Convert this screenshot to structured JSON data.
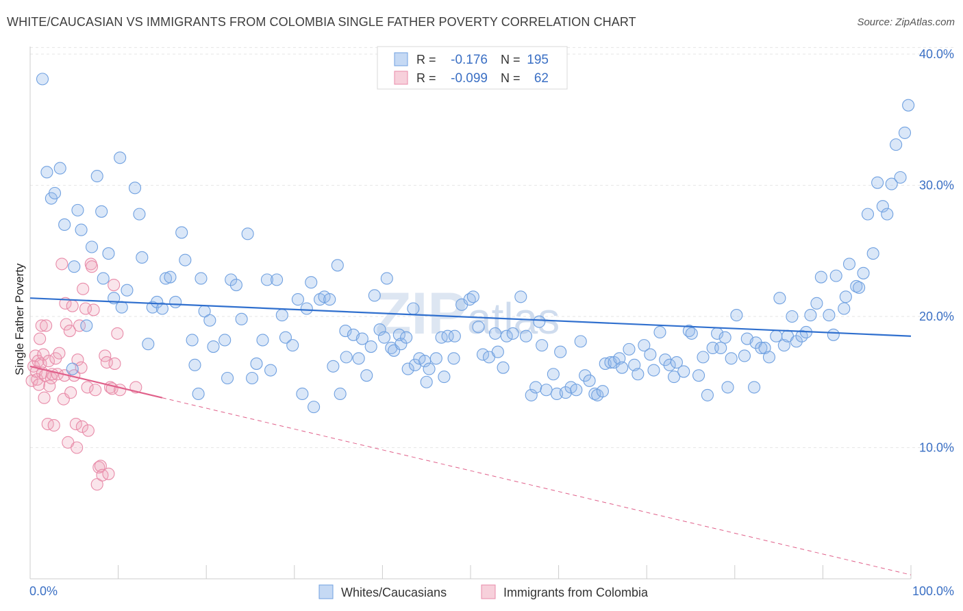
{
  "title": "WHITE/CAUCASIAN VS IMMIGRANTS FROM COLOMBIA SINGLE FATHER POVERTY CORRELATION CHART",
  "source": "Source: ZipAtlas.com",
  "watermark": {
    "zip": "ZIP",
    "atlas": "atlas"
  },
  "colors": {
    "blue": "#6fa0e0",
    "blue_fill": "rgba(150,185,235,0.35)",
    "blue_line": "#2f6fce",
    "pink": "#e88aa8",
    "pink_fill": "rgba(240,170,190,0.30)",
    "pink_line": "#e0608a",
    "tick_text": "#3a6fc4",
    "grid": "#e6e6e6"
  },
  "legend": {
    "rows": [
      {
        "r_label": "R =",
        "r_value": "-0.176",
        "n_label": "N =",
        "n_value": "195"
      },
      {
        "r_label": "R =",
        "r_value": "-0.099",
        "n_label": "N =",
        "n_value": "62"
      }
    ]
  },
  "bottom_legend": [
    "Whites/Caucasians",
    "Immigrants from Colombia"
  ],
  "chart_data": {
    "type": "scatter",
    "title": "WHITE/CAUCASIAN VS IMMIGRANTS FROM COLOMBIA SINGLE FATHER POVERTY CORRELATION CHART",
    "xlabel": "",
    "ylabel": "Single Father Poverty",
    "xlim": [
      0,
      100
    ],
    "ylim": [
      0,
      41.5
    ],
    "x_ticks": [
      "0.0%",
      "100.0%"
    ],
    "y_ticks": [
      {
        "value": 10,
        "label": "10.0%"
      },
      {
        "value": 20,
        "label": "20.0%"
      },
      {
        "value": 30,
        "label": "30.0%"
      },
      {
        "value": 40,
        "label": "40.0%"
      }
    ],
    "grid": true,
    "legend_position": "top-center",
    "series": [
      {
        "name": "Whites/Caucasians",
        "r": -0.176,
        "n": 195,
        "trend": {
          "x": [
            0,
            100
          ],
          "y": [
            21.4,
            18.5
          ]
        },
        "points": [
          [
            1.4,
            38.1
          ],
          [
            1.9,
            31.0
          ],
          [
            2.4,
            29.0
          ],
          [
            2.8,
            29.4
          ],
          [
            3.4,
            31.3
          ],
          [
            3.9,
            27.0
          ],
          [
            4.8,
            16.0
          ],
          [
            5.0,
            23.8
          ],
          [
            5.4,
            28.1
          ],
          [
            5.8,
            26.6
          ],
          [
            6.4,
            19.3
          ],
          [
            7.0,
            25.3
          ],
          [
            7.6,
            30.7
          ],
          [
            8.1,
            28.0
          ],
          [
            8.3,
            22.9
          ],
          [
            8.9,
            24.8
          ],
          [
            9.5,
            21.4
          ],
          [
            10.2,
            32.1
          ],
          [
            10.4,
            20.7
          ],
          [
            11.0,
            22.0
          ],
          [
            11.9,
            29.8
          ],
          [
            12.4,
            27.8
          ],
          [
            12.7,
            24.5
          ],
          [
            13.4,
            17.9
          ],
          [
            13.9,
            20.7
          ],
          [
            14.4,
            21.1
          ],
          [
            15.0,
            20.6
          ],
          [
            15.4,
            22.9
          ],
          [
            15.9,
            23.0
          ],
          [
            16.5,
            21.1
          ],
          [
            17.2,
            26.4
          ],
          [
            17.6,
            24.3
          ],
          [
            18.4,
            18.2
          ],
          [
            18.7,
            16.3
          ],
          [
            19.1,
            14.1
          ],
          [
            19.4,
            22.9
          ],
          [
            19.8,
            20.4
          ],
          [
            20.4,
            19.7
          ],
          [
            20.8,
            17.7
          ],
          [
            22.1,
            18.2
          ],
          [
            22.4,
            15.3
          ],
          [
            22.8,
            22.8
          ],
          [
            23.4,
            22.4
          ],
          [
            24.0,
            19.8
          ],
          [
            24.7,
            26.3
          ],
          [
            25.2,
            15.3
          ],
          [
            25.7,
            16.4
          ],
          [
            26.4,
            18.2
          ],
          [
            26.9,
            22.8
          ],
          [
            27.3,
            15.9
          ],
          [
            28.0,
            22.8
          ],
          [
            28.6,
            20.1
          ],
          [
            29.0,
            18.4
          ],
          [
            29.8,
            17.8
          ],
          [
            30.4,
            21.3
          ],
          [
            30.9,
            14.1
          ],
          [
            31.4,
            20.6
          ],
          [
            31.9,
            22.6
          ],
          [
            32.2,
            13.1
          ],
          [
            32.9,
            21.3
          ],
          [
            33.4,
            21.5
          ],
          [
            34.0,
            21.3
          ],
          [
            34.4,
            16.2
          ],
          [
            34.9,
            23.9
          ],
          [
            35.2,
            14.1
          ],
          [
            35.8,
            18.9
          ],
          [
            35.9,
            16.9
          ],
          [
            36.7,
            18.6
          ],
          [
            37.3,
            16.8
          ],
          [
            37.7,
            18.3
          ],
          [
            38.2,
            15.5
          ],
          [
            38.7,
            17.7
          ],
          [
            39.1,
            21.6
          ],
          [
            39.7,
            19.0
          ],
          [
            40.2,
            18.4
          ],
          [
            40.5,
            22.9
          ],
          [
            41.0,
            17.6
          ],
          [
            41.3,
            17.4
          ],
          [
            41.9,
            18.6
          ],
          [
            42.1,
            17.9
          ],
          [
            42.7,
            18.4
          ],
          [
            42.9,
            16.0
          ],
          [
            43.5,
            20.6
          ],
          [
            43.7,
            16.3
          ],
          [
            44.2,
            16.8
          ],
          [
            44.8,
            16.6
          ],
          [
            45.0,
            15.0
          ],
          [
            45.3,
            16.0
          ],
          [
            46.1,
            16.8
          ],
          [
            46.7,
            18.4
          ],
          [
            47.0,
            15.4
          ],
          [
            47.4,
            18.5
          ],
          [
            48.1,
            16.8
          ],
          [
            48.2,
            18.5
          ],
          [
            49.0,
            20.9
          ],
          [
            49.9,
            21.3
          ],
          [
            50.3,
            21.5
          ],
          [
            50.9,
            19.2
          ],
          [
            51.4,
            17.1
          ],
          [
            52.1,
            16.9
          ],
          [
            52.8,
            18.7
          ],
          [
            53.1,
            17.3
          ],
          [
            53.7,
            16.1
          ],
          [
            54.1,
            18.5
          ],
          [
            54.8,
            18.7
          ],
          [
            55.7,
            21.5
          ],
          [
            56.3,
            18.5
          ],
          [
            56.9,
            14.0
          ],
          [
            57.4,
            14.6
          ],
          [
            57.8,
            19.6
          ],
          [
            58.1,
            17.8
          ],
          [
            58.6,
            14.4
          ],
          [
            59.4,
            15.6
          ],
          [
            59.8,
            14.1
          ],
          [
            60.2,
            17.3
          ],
          [
            60.8,
            14.2
          ],
          [
            61.4,
            14.6
          ],
          [
            62.0,
            14.4
          ],
          [
            62.5,
            18.1
          ],
          [
            63.0,
            15.5
          ],
          [
            63.5,
            15.1
          ],
          [
            64.1,
            14.1
          ],
          [
            64.4,
            14.0
          ],
          [
            65.0,
            14.3
          ],
          [
            65.3,
            16.4
          ],
          [
            65.9,
            16.5
          ],
          [
            66.3,
            16.5
          ],
          [
            66.9,
            16.8
          ],
          [
            67.2,
            16.1
          ],
          [
            68.0,
            17.5
          ],
          [
            68.6,
            16.3
          ],
          [
            69.0,
            15.6
          ],
          [
            69.7,
            17.8
          ],
          [
            70.4,
            17.1
          ],
          [
            70.8,
            15.9
          ],
          [
            71.5,
            18.8
          ],
          [
            72.1,
            16.7
          ],
          [
            72.6,
            16.3
          ],
          [
            73.1,
            15.4
          ],
          [
            73.4,
            16.5
          ],
          [
            74.2,
            15.8
          ],
          [
            74.8,
            18.9
          ],
          [
            75.1,
            18.7
          ],
          [
            75.9,
            15.5
          ],
          [
            76.4,
            16.9
          ],
          [
            76.9,
            14.0
          ],
          [
            77.5,
            17.6
          ],
          [
            78.0,
            18.7
          ],
          [
            78.4,
            17.6
          ],
          [
            78.9,
            18.4
          ],
          [
            79.2,
            14.6
          ],
          [
            79.6,
            16.8
          ],
          [
            80.2,
            20.1
          ],
          [
            81.1,
            17.0
          ],
          [
            81.4,
            18.3
          ],
          [
            82.2,
            14.6
          ],
          [
            82.4,
            18.0
          ],
          [
            83.0,
            17.6
          ],
          [
            83.4,
            17.6
          ],
          [
            83.9,
            16.9
          ],
          [
            84.7,
            18.5
          ],
          [
            85.1,
            21.4
          ],
          [
            85.6,
            17.8
          ],
          [
            86.0,
            18.5
          ],
          [
            86.5,
            20.0
          ],
          [
            87.0,
            18.1
          ],
          [
            87.6,
            18.5
          ],
          [
            88.1,
            18.8
          ],
          [
            88.6,
            20.1
          ],
          [
            89.3,
            21.0
          ],
          [
            89.8,
            23.0
          ],
          [
            90.7,
            20.1
          ],
          [
            91.2,
            18.6
          ],
          [
            91.5,
            23.1
          ],
          [
            92.4,
            20.6
          ],
          [
            92.6,
            21.5
          ],
          [
            93.0,
            24.0
          ],
          [
            93.8,
            22.3
          ],
          [
            94.1,
            22.2
          ],
          [
            94.6,
            23.3
          ],
          [
            95.1,
            27.8
          ],
          [
            95.7,
            24.8
          ],
          [
            96.2,
            30.2
          ],
          [
            96.8,
            28.4
          ],
          [
            97.3,
            27.8
          ],
          [
            97.8,
            30.1
          ],
          [
            98.3,
            33.1
          ],
          [
            98.8,
            30.6
          ],
          [
            99.3,
            34.0
          ],
          [
            99.7,
            36.1
          ]
        ]
      },
      {
        "name": "Immigrants from Colombia",
        "r": -0.099,
        "n": 62,
        "trend": {
          "x": [
            0,
            15
          ],
          "y": [
            16.2,
            13.8
          ]
        },
        "trend_extension": {
          "x": [
            15,
            100
          ],
          "y": [
            13.8,
            0.3
          ]
        },
        "points": [
          [
            0.2,
            15.1
          ],
          [
            0.4,
            16.2
          ],
          [
            0.6,
            17.0
          ],
          [
            0.7,
            15.8
          ],
          [
            0.8,
            15.2
          ],
          [
            0.9,
            16.6
          ],
          [
            1.0,
            14.8
          ],
          [
            1.1,
            18.3
          ],
          [
            1.2,
            16.4
          ],
          [
            1.3,
            19.3
          ],
          [
            1.4,
            15.7
          ],
          [
            1.5,
            17.1
          ],
          [
            1.6,
            13.8
          ],
          [
            1.7,
            15.5
          ],
          [
            1.8,
            19.3
          ],
          [
            2.0,
            11.8
          ],
          [
            2.1,
            16.6
          ],
          [
            2.2,
            14.7
          ],
          [
            2.4,
            15.3
          ],
          [
            2.5,
            15.6
          ],
          [
            2.7,
            11.7
          ],
          [
            2.9,
            16.8
          ],
          [
            3.1,
            15.6
          ],
          [
            3.3,
            17.2
          ],
          [
            3.6,
            24.0
          ],
          [
            3.8,
            13.7
          ],
          [
            3.9,
            15.5
          ],
          [
            4.0,
            21.0
          ],
          [
            4.1,
            19.4
          ],
          [
            4.3,
            10.4
          ],
          [
            4.5,
            18.9
          ],
          [
            4.6,
            14.2
          ],
          [
            4.8,
            20.8
          ],
          [
            5.0,
            15.5
          ],
          [
            5.2,
            11.8
          ],
          [
            5.3,
            10.0
          ],
          [
            5.4,
            16.7
          ],
          [
            5.6,
            19.3
          ],
          [
            5.8,
            16.1
          ],
          [
            5.9,
            11.6
          ],
          [
            6.0,
            22.1
          ],
          [
            6.3,
            20.6
          ],
          [
            6.5,
            14.6
          ],
          [
            6.6,
            11.3
          ],
          [
            6.9,
            24.0
          ],
          [
            7.0,
            23.8
          ],
          [
            7.2,
            20.5
          ],
          [
            7.4,
            14.4
          ],
          [
            7.6,
            7.2
          ],
          [
            7.8,
            8.5
          ],
          [
            8.0,
            8.6
          ],
          [
            8.2,
            7.9
          ],
          [
            8.5,
            17.0
          ],
          [
            8.7,
            16.5
          ],
          [
            8.9,
            8.0
          ],
          [
            9.1,
            14.6
          ],
          [
            9.3,
            14.5
          ],
          [
            9.5,
            22.4
          ],
          [
            9.6,
            16.4
          ],
          [
            9.9,
            18.7
          ],
          [
            10.2,
            14.4
          ],
          [
            12.0,
            14.6
          ]
        ]
      }
    ]
  }
}
